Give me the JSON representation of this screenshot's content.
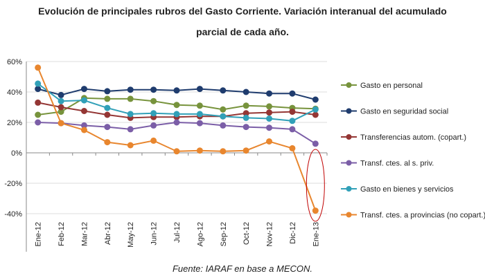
{
  "title_line1": "Evolución de principales rubros del Gasto Corriente. Variación interanual del acumulado",
  "title_line2": "parcial de cada año.",
  "source": "Fuente: IARAF en base a MECON.",
  "chart_data": {
    "type": "line",
    "categories": [
      "Ene-12",
      "Feb-12",
      "Mar-12",
      "Abr-12",
      "May-12",
      "Jun-12",
      "Jul-12",
      "Ago-12",
      "Sep-12",
      "Oct-12",
      "Nov-12",
      "Dic-12",
      "Ene-13"
    ],
    "ylim": [
      -40,
      60
    ],
    "yticks": [
      -40,
      -20,
      0,
      20,
      40,
      60
    ],
    "ytick_labels": [
      "-40%",
      "-20%",
      "0%",
      "20%",
      "40%",
      "60%"
    ],
    "grid": true,
    "legend_placement": "right",
    "annotation": "red ellipse around Ene-13",
    "series": [
      {
        "name": "Gasto  en personal",
        "color": "#77933c",
        "values": [
          25,
          27,
          36,
          35.5,
          35.5,
          34,
          31.5,
          31,
          28.5,
          31,
          30.5,
          29.5,
          29
        ]
      },
      {
        "name": "Gasto  en seguridad social",
        "color": "#1f3c6e",
        "values": [
          42,
          38,
          42,
          40.5,
          41.5,
          41.5,
          41,
          42,
          41,
          40,
          39,
          39,
          35
        ]
      },
      {
        "name": "Transferencias autom.  (copart.)",
        "color": "#943634",
        "values": [
          33,
          30,
          27.5,
          25,
          23,
          23.5,
          23.5,
          24,
          24,
          26,
          26.5,
          27,
          25
        ]
      },
      {
        "name": "Transf. ctes. al s. priv.",
        "color": "#7b5ea7",
        "values": [
          20,
          19.5,
          18,
          17,
          15.5,
          18,
          20,
          19.5,
          18,
          17,
          16.5,
          15.5,
          6
        ]
      },
      {
        "name": "Gasto  en bienes y servicios",
        "color": "#31a0b8",
        "values": [
          45.5,
          34,
          34.5,
          29.5,
          25.5,
          26,
          25.5,
          25.5,
          24,
          23,
          22.5,
          21,
          28.5
        ]
      },
      {
        "name": "Transf. ctes. a provincias (no copart.)",
        "color": "#e8862e",
        "values": [
          56,
          19.5,
          15,
          7,
          5,
          8,
          1,
          1.5,
          1,
          1.5,
          7.5,
          3,
          -38
        ]
      }
    ]
  }
}
